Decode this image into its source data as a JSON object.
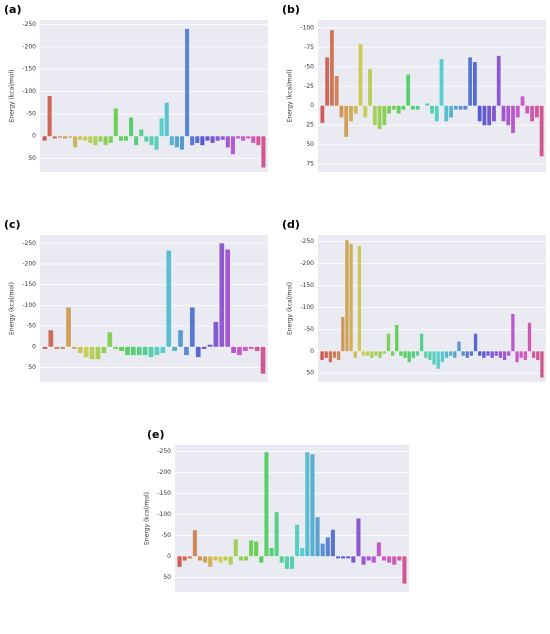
{
  "chart_data": [
    {
      "type": "bar",
      "panel_label": "(a)",
      "ylabel": "Energy (kcal/mol)",
      "palette": "husl",
      "grid": true,
      "values": [
        10,
        -90,
        5,
        3,
        5,
        3,
        25,
        8,
        10,
        15,
        20,
        12,
        20,
        15,
        -62,
        10,
        10,
        -42,
        20,
        -15,
        12,
        20,
        30,
        -40,
        -75,
        20,
        25,
        30,
        -240,
        20,
        15,
        20,
        10,
        15,
        10,
        8,
        25,
        40,
        5,
        10,
        5,
        15,
        20,
        70
      ],
      "ylim": [
        80,
        -260
      ],
      "yticks": [
        -250,
        -200,
        -150,
        -100,
        -50,
        0,
        50
      ]
    },
    {
      "type": "bar",
      "panel_label": "(b)",
      "ylabel": "Energy (kcal/mol)",
      "palette": "husl",
      "grid": true,
      "values": [
        22,
        -62,
        -97,
        -38,
        15,
        40,
        20,
        10,
        -79,
        15,
        -47,
        25,
        30,
        25,
        10,
        5,
        10,
        5,
        -40,
        5,
        5,
        0,
        -3,
        10,
        20,
        -60,
        20,
        15,
        5,
        5,
        5,
        -62,
        -56,
        20,
        25,
        25,
        20,
        -64,
        20,
        25,
        35,
        15,
        -12,
        10,
        20,
        15,
        65
      ],
      "ylim": [
        85,
        -110
      ],
      "yticks": [
        -100,
        -75,
        -50,
        -25,
        0,
        25,
        50,
        75
      ]
    },
    {
      "type": "bar",
      "panel_label": "(c)",
      "ylabel": "Energy (kcal/mol)",
      "palette": "husl",
      "grid": true,
      "values": [
        5,
        -40,
        5,
        5,
        -95,
        5,
        15,
        25,
        30,
        30,
        15,
        -35,
        5,
        10,
        20,
        20,
        20,
        20,
        25,
        20,
        15,
        -232,
        10,
        -40,
        20,
        -95,
        25,
        5,
        -5,
        -60,
        -250,
        -235,
        15,
        20,
        10,
        5,
        10,
        65
      ],
      "ylim": [
        85,
        -270
      ],
      "yticks": [
        -250,
        -200,
        -150,
        -100,
        -50,
        0,
        50
      ]
    },
    {
      "type": "bar",
      "panel_label": "(d)",
      "ylabel": "Energy (kcal/mol)",
      "palette": "husl",
      "grid": true,
      "values": [
        20,
        15,
        25,
        15,
        20,
        -78,
        -253,
        -245,
        15,
        -240,
        10,
        10,
        15,
        10,
        15,
        5,
        -40,
        10,
        -60,
        10,
        15,
        25,
        15,
        10,
        -40,
        15,
        20,
        30,
        40,
        25,
        15,
        10,
        15,
        -22,
        10,
        15,
        10,
        -40,
        10,
        15,
        10,
        15,
        10,
        15,
        20,
        10,
        -85,
        25,
        15,
        20,
        -65,
        15,
        20,
        60
      ],
      "ylim": [
        70,
        -265
      ],
      "yticks": [
        -250,
        -200,
        -150,
        -100,
        -50,
        0,
        50
      ]
    },
    {
      "type": "bar",
      "panel_label": "(e)",
      "ylabel": "Energy (kcal/mol)",
      "palette": "husl",
      "grid": true,
      "values": [
        25,
        10,
        5,
        -62,
        10,
        15,
        25,
        10,
        15,
        10,
        20,
        -40,
        10,
        10,
        -38,
        -35,
        15,
        -248,
        -20,
        -105,
        15,
        30,
        30,
        -75,
        -20,
        -248,
        -243,
        -93,
        -30,
        -45,
        -63,
        5,
        5,
        5,
        15,
        -90,
        20,
        10,
        15,
        -33,
        10,
        15,
        20,
        10,
        65
      ],
      "ylim": [
        85,
        -265
      ],
      "yticks": [
        -250,
        -200,
        -150,
        -100,
        -50,
        0,
        50
      ]
    }
  ]
}
